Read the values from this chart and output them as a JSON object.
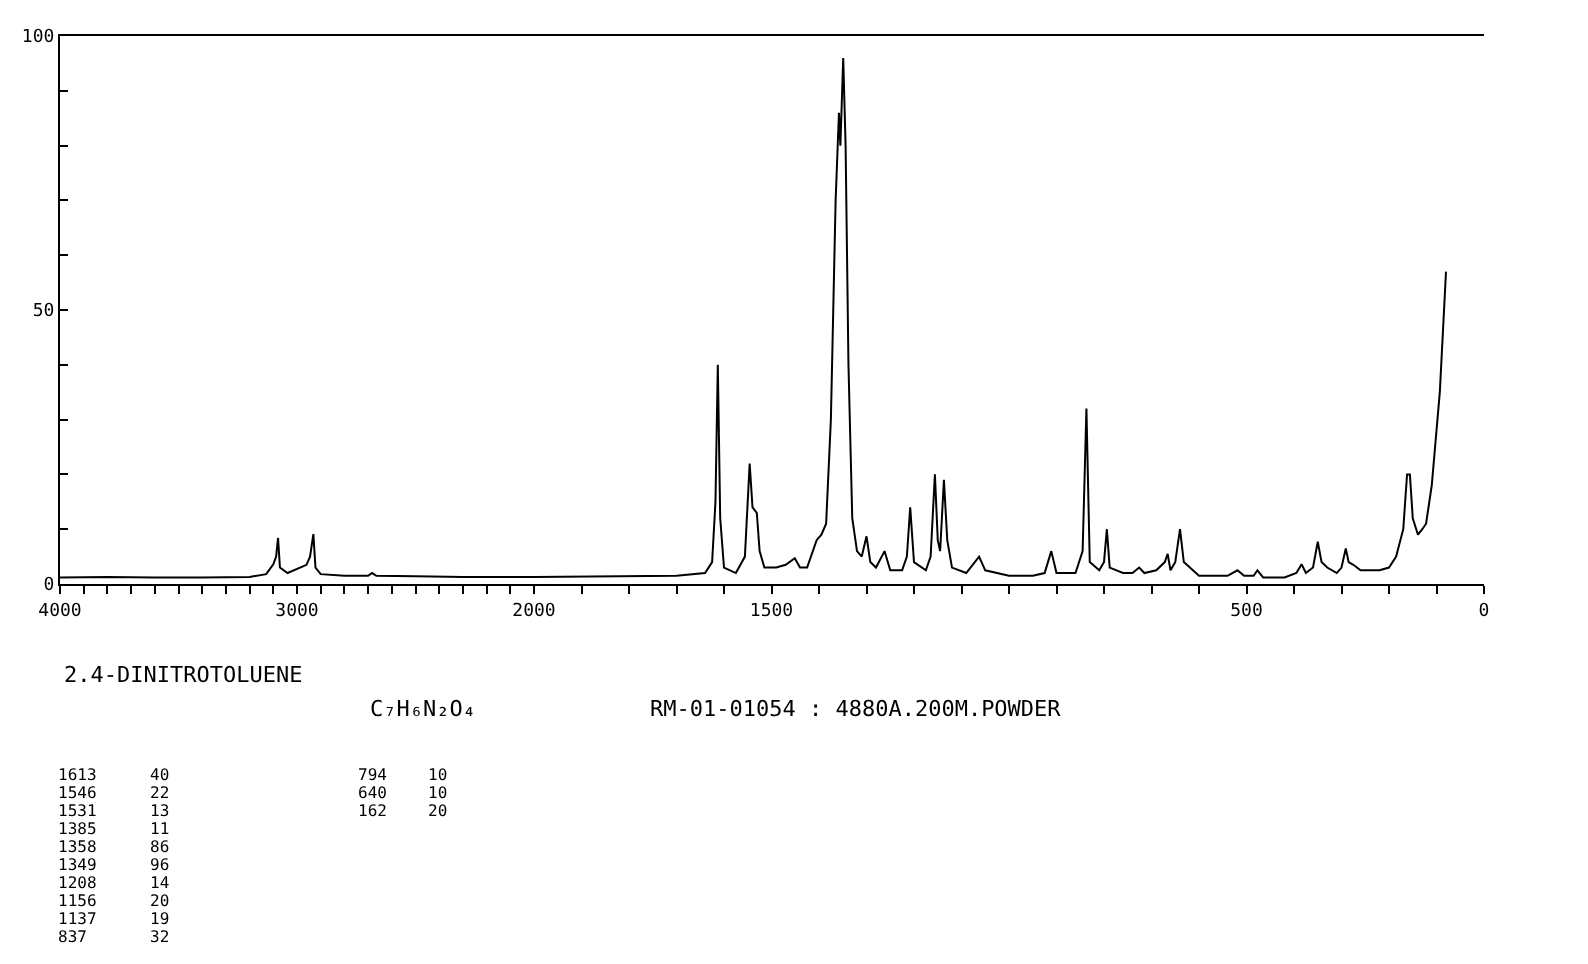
{
  "chart_data": [
    {
      "type": "line",
      "title": "2.4-DINITROTOLUENE",
      "subtitle": "C₇H₆N₂O₄",
      "annotations": [
        "RM-01-01054 : 4880A.200M.POWDER",
        "1613 40",
        "1546 22",
        "1531 13",
        "1385 11",
        "1358 86",
        "1349 96",
        "1208 14",
        "1156 20",
        "1137 19",
        "837 32",
        "794 10",
        "640 10",
        "162 20"
      ],
      "color": "#000000",
      "x": [
        4000,
        3800,
        3600,
        3400,
        3200,
        3130,
        3100,
        3088,
        3080,
        3072,
        3040,
        2987,
        2960,
        2945,
        2931,
        2922,
        2900,
        2800,
        2700,
        2683,
        2665,
        2500,
        2300,
        2000
      ],
      "values": [
        1.2,
        1.3,
        1.2,
        1.2,
        1.3,
        1.8,
        3.6,
        5,
        8.4,
        3,
        2,
        3,
        3.5,
        5,
        9.1,
        3,
        1.8,
        1.5,
        1.5,
        2,
        1.5,
        1.4,
        1.3,
        1.3
      ],
      "xlim": [
        4000,
        2000
      ],
      "xticks": [
        4000,
        {
          "value": 3900,
          "label": null
        },
        {
          "value": 3800,
          "label": null
        },
        {
          "value": 3700,
          "label": null
        },
        {
          "value": 3600,
          "label": null
        },
        {
          "value": 3500,
          "label": null
        },
        {
          "value": 3400,
          "label": null
        },
        {
          "value": 3300,
          "label": null
        },
        {
          "value": 3200,
          "label": null
        },
        {
          "value": 3100,
          "label": null
        },
        3000,
        {
          "value": 2900,
          "label": null
        },
        {
          "value": 2800,
          "label": null
        },
        {
          "value": 2700,
          "label": null
        },
        {
          "value": 2600,
          "label": null
        },
        {
          "value": 2500,
          "label": null
        },
        {
          "value": 2400,
          "label": null
        },
        {
          "value": 2300,
          "label": null
        },
        {
          "value": 2200,
          "label": null
        },
        {
          "value": 2100,
          "label": null
        },
        2000
      ],
      "ylim": [
        0,
        100
      ],
      "yticks": [
        0,
        {
          "value": 10,
          "label": null
        },
        {
          "value": 20,
          "label": null
        },
        {
          "value": 30,
          "label": null
        },
        {
          "value": 40,
          "label": null
        },
        50,
        {
          "value": 60,
          "label": null
        },
        {
          "value": 70,
          "label": null
        },
        {
          "value": 80,
          "label": null
        },
        {
          "value": 90,
          "label": null
        },
        100
      ]
    },
    {
      "type": "line",
      "color": "#000000",
      "tick_labels": "x",
      "x": [
        2000,
        1700,
        1640,
        1625,
        1618,
        1613,
        1608,
        1600,
        1575,
        1556,
        1546,
        1540,
        1531,
        1525,
        1515,
        1490,
        1470,
        1451,
        1440,
        1425,
        1405,
        1395,
        1385,
        1375,
        1365,
        1358,
        1355,
        1349,
        1344,
        1338,
        1330,
        1320,
        1310,
        1300,
        1292,
        1280,
        1262,
        1250,
        1225,
        1215,
        1208,
        1200,
        1175,
        1165,
        1156,
        1150,
        1145,
        1137,
        1130,
        1120,
        1090,
        1063,
        1050,
        1000,
        950,
        925,
        911,
        900,
        860,
        845,
        837,
        830,
        810,
        800,
        794,
        788,
        760,
        740,
        726,
        715,
        690,
        672,
        666,
        660,
        650,
        640,
        632,
        600,
        540,
        519,
        505,
        485,
        477,
        465,
        420,
        395,
        384,
        375,
        360,
        350,
        342,
        330,
        310,
        300,
        291,
        285,
        275,
        260,
        220,
        200,
        185,
        170,
        162,
        156,
        150,
        139,
        130,
        122,
        110,
        93,
        80
      ],
      "values": [
        1.3,
        1.5,
        2,
        4,
        15,
        40,
        12,
        3,
        2,
        5,
        22,
        14,
        13,
        6,
        3,
        3,
        3.5,
        4.7,
        3,
        3,
        8,
        9,
        11,
        30,
        70,
        86,
        80,
        96,
        80,
        40,
        12,
        6,
        5,
        8.7,
        4,
        3,
        6,
        2.5,
        2.5,
        5,
        14,
        4,
        2.5,
        5,
        20,
        8,
        6,
        19,
        8,
        3,
        2,
        5,
        2.5,
        1.5,
        1.5,
        2,
        6,
        2,
        2,
        6,
        32,
        4,
        2.5,
        4,
        10,
        3,
        2,
        2,
        3,
        2,
        2.5,
        4,
        5.5,
        2.5,
        4,
        10,
        4,
        1.5,
        1.5,
        2.5,
        1.5,
        1.5,
        2.5,
        1.2,
        1.2,
        2,
        3.6,
        2,
        3,
        7.7,
        4,
        3,
        2,
        3,
        6.5,
        4,
        3.5,
        2.5,
        2.5,
        3,
        5,
        10,
        20,
        20,
        12,
        9,
        10,
        11,
        18,
        35,
        57
      ],
      "xlim": [
        2000,
        0
      ],
      "xticks": [
        {
          "value": 1900,
          "label": null
        },
        {
          "value": 1800,
          "label": null
        },
        {
          "value": 1700,
          "label": null
        },
        {
          "value": 1600,
          "label": null
        },
        1500,
        {
          "value": 1400,
          "label": null
        },
        {
          "value": 1300,
          "label": null
        },
        {
          "value": 1200,
          "label": null
        },
        {
          "value": 1100,
          "label": null
        },
        {
          "value": 1000,
          "label": null
        },
        {
          "value": 900,
          "label": null
        },
        {
          "value": 800,
          "label": null
        },
        {
          "value": 700,
          "label": null
        },
        {
          "value": 600,
          "label": null
        },
        500,
        {
          "value": 400,
          "label": null
        },
        {
          "value": 300,
          "label": null
        },
        {
          "value": 200,
          "label": null
        },
        {
          "value": 100,
          "label": null
        },
        0
      ],
      "ylim": [
        0,
        100
      ]
    }
  ]
}
